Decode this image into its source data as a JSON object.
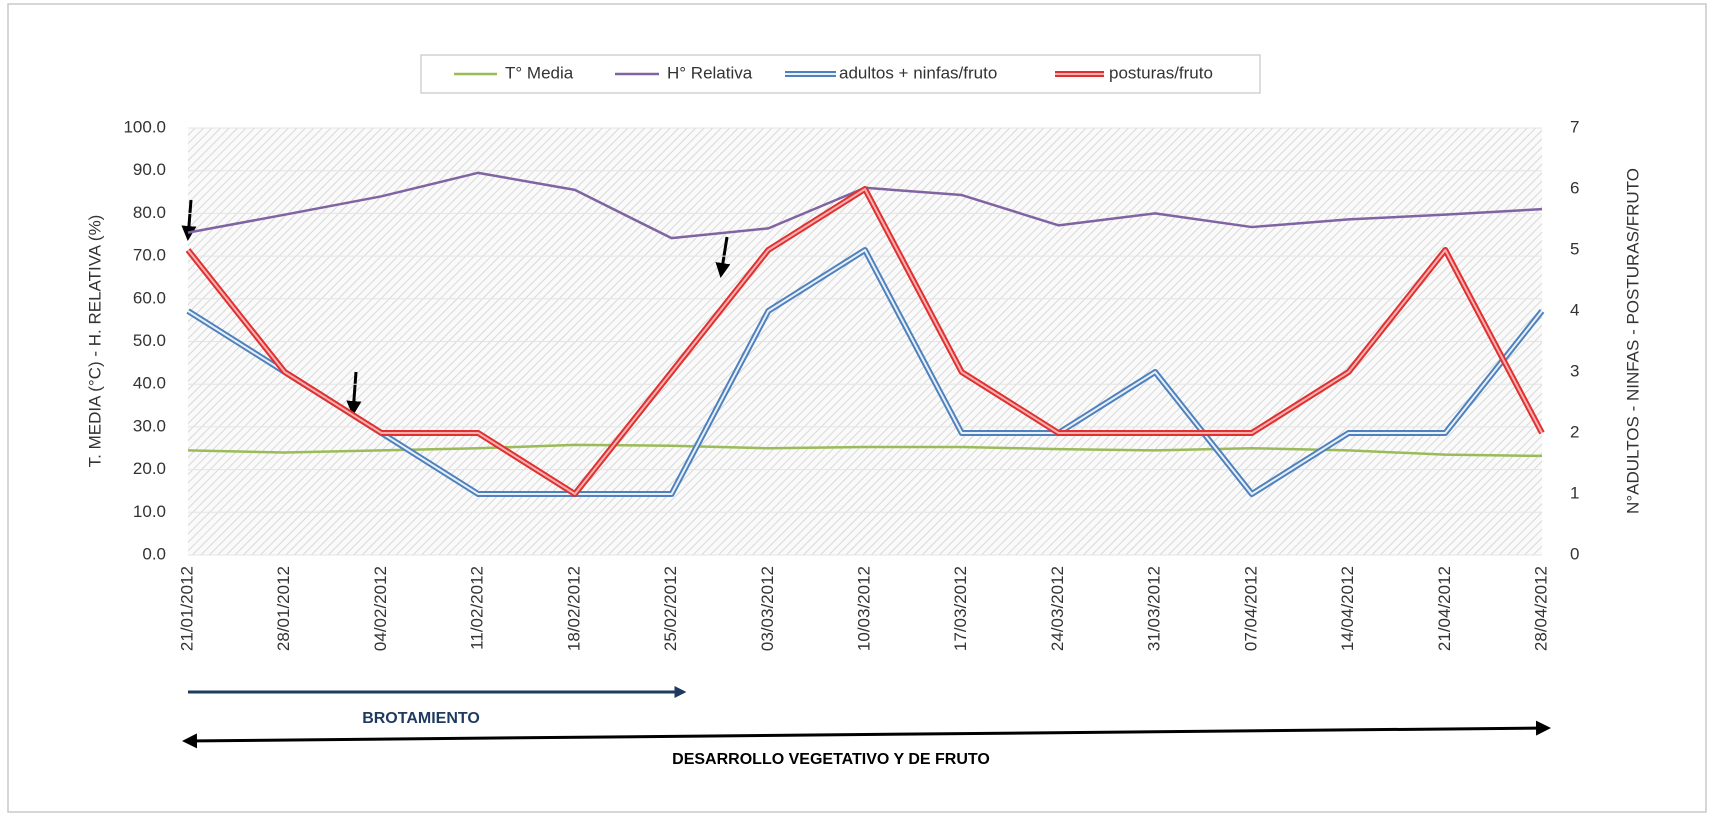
{
  "chart_data": {
    "type": "line",
    "yaxis_label": "T. MEDIA (°C) - H. RELATIVA (%)",
    "y2axis_label": "N°ADULTOS - NINFAS - POSTURAS/FRUTO",
    "categories": [
      "21/01/2012",
      "28/01/2012",
      "04/02/2012",
      "11/02/2012",
      "18/02/2012",
      "25/02/2012",
      "03/03/2012",
      "10/03/2012",
      "17/03/2012",
      "24/03/2012",
      "31/03/2012",
      "07/04/2012",
      "14/04/2012",
      "21/04/2012",
      "28/04/2012"
    ],
    "series": [
      {
        "name": "T° Media",
        "color": "#9bbb59",
        "axis": "y",
        "values": [
          24.5,
          24.0,
          24.5,
          25.0,
          25.8,
          25.6,
          25.0,
          25.3,
          25.3,
          24.8,
          24.5,
          25.0,
          24.5,
          23.5,
          23.2
        ]
      },
      {
        "name": "H° Relativa",
        "color": "#8064a2",
        "axis": "y",
        "values": [
          75.5,
          79.7,
          84.0,
          89.5,
          85.5,
          74.2,
          76.5,
          86.0,
          84.3,
          77.2,
          80.0,
          76.8,
          78.6,
          79.7,
          81.0
        ]
      },
      {
        "name": "adultos + ninfas/fruto",
        "color": "#4f81bd",
        "axis": "y2",
        "values": [
          4,
          3,
          2,
          1,
          1,
          1,
          4,
          5,
          2,
          2,
          3,
          1,
          2,
          2,
          4
        ]
      },
      {
        "name": "posturas/fruto",
        "color": "#e03030",
        "axis": "y2",
        "values": [
          5,
          3,
          2,
          2,
          1,
          3,
          5,
          6,
          3,
          2,
          2,
          2,
          3,
          5,
          2
        ]
      }
    ],
    "ylim": [
      0,
      100
    ],
    "yticks": [
      {
        "value": 0,
        "label": "0.0"
      },
      {
        "value": 10,
        "label": "10.0"
      },
      {
        "value": 20,
        "label": "20.0"
      },
      {
        "value": 30,
        "label": "30.0"
      },
      {
        "value": 40,
        "label": "40.0"
      },
      {
        "value": 50,
        "label": "50.0"
      },
      {
        "value": 60,
        "label": "60.0"
      },
      {
        "value": 70,
        "label": "70.0"
      },
      {
        "value": 80,
        "label": "80.0"
      },
      {
        "value": 90,
        "label": "90.0"
      },
      {
        "value": 100,
        "label": "100.0"
      }
    ],
    "y2lim": [
      0,
      7
    ],
    "y2ticks": [
      0,
      1,
      2,
      3,
      4,
      5,
      6,
      7
    ],
    "grid": true,
    "legend": "top",
    "annotations": [
      "BROTAMIENTO",
      "DESARROLLO VEGETATIVO Y DE FRUTO"
    ]
  }
}
